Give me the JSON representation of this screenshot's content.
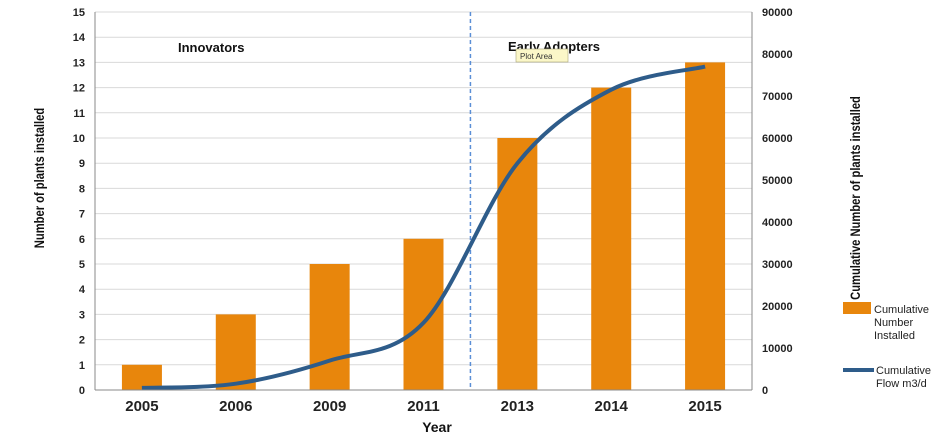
{
  "chart_data": {
    "type": "bar",
    "categories": [
      "2005",
      "2006",
      "2009",
      "2011",
      "2013",
      "2014",
      "2015"
    ],
    "xlabel": "Year",
    "ylabel": "Number of plants installed",
    "y2label": "Cumulative Number of plants installed",
    "ylim": [
      0,
      15
    ],
    "y2lim": [
      0,
      90000
    ],
    "grid": true,
    "legend_position": "right",
    "series": [
      {
        "name": "Cumulative Number Installed",
        "type": "bar",
        "axis": "left",
        "values": [
          1,
          3,
          5,
          6,
          10,
          12,
          13
        ],
        "color": "#E8860C"
      },
      {
        "name": "Cumulative Flow m3/d",
        "type": "line",
        "axis": "right",
        "values": [
          500,
          1500,
          7000,
          16000,
          54000,
          71500,
          77000
        ],
        "color": "#2E5C8A"
      }
    ],
    "annotations": {
      "left_region": "Innovators",
      "right_region": "Early Adopters",
      "divider_color": "#5B8FD6",
      "tooltip": "Plot Area"
    }
  }
}
